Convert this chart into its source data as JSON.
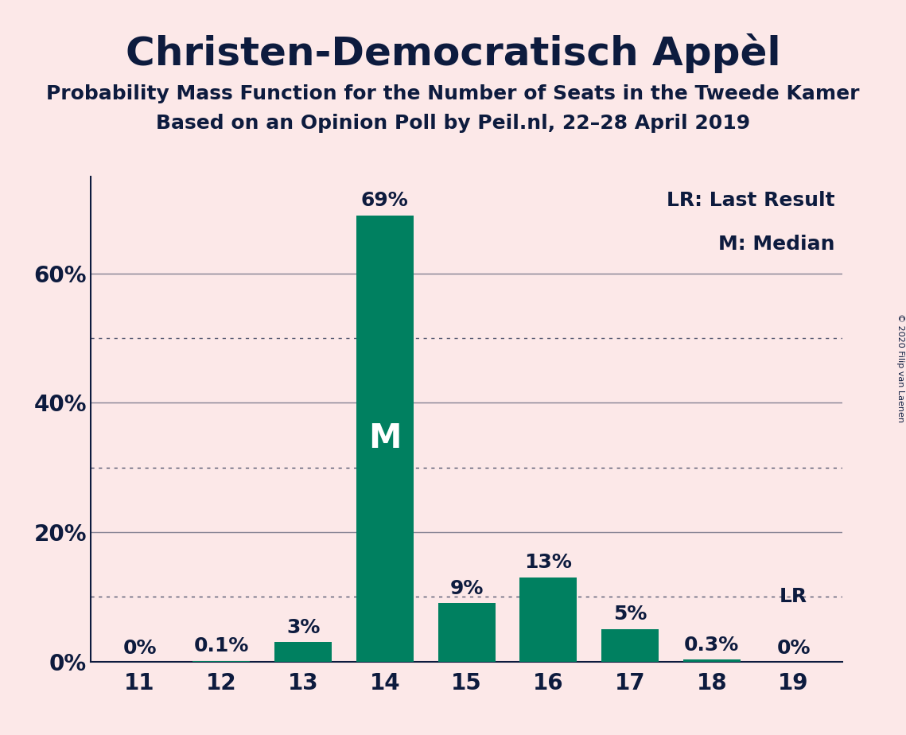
{
  "title": "Christen-Democratisch Appèl",
  "subtitle1": "Probability Mass Function for the Number of Seats in the Tweede Kamer",
  "subtitle2": "Based on an Opinion Poll by Peil.nl, 22–28 April 2019",
  "copyright": "© 2020 Filip van Laenen",
  "categories": [
    11,
    12,
    13,
    14,
    15,
    16,
    17,
    18,
    19
  ],
  "values": [
    0.0,
    0.1,
    3.0,
    69.0,
    9.0,
    13.0,
    5.0,
    0.3,
    0.0
  ],
  "labels": [
    "0%",
    "0.1%",
    "3%",
    "69%",
    "9%",
    "13%",
    "5%",
    "0.3%",
    "0%"
  ],
  "bar_color": "#008060",
  "background_color": "#fce8e8",
  "text_color": "#0d1b3e",
  "median_bar": 14,
  "median_label": "M",
  "lr_bar": 19,
  "lr_label": "LR",
  "legend_lr": "LR: Last Result",
  "legend_m": "M: Median",
  "ylim": [
    0,
    75
  ],
  "solid_yticks": [
    20,
    40,
    60
  ],
  "dotted_yticks": [
    10,
    30,
    50
  ],
  "ytick_positions": [
    0,
    20,
    40,
    60
  ],
  "ytick_labels": [
    "0%",
    "20%",
    "40%",
    "60%"
  ],
  "title_fontsize": 36,
  "subtitle_fontsize": 18,
  "label_fontsize": 18,
  "tick_fontsize": 20,
  "legend_fontsize": 18,
  "median_label_fontsize": 30
}
